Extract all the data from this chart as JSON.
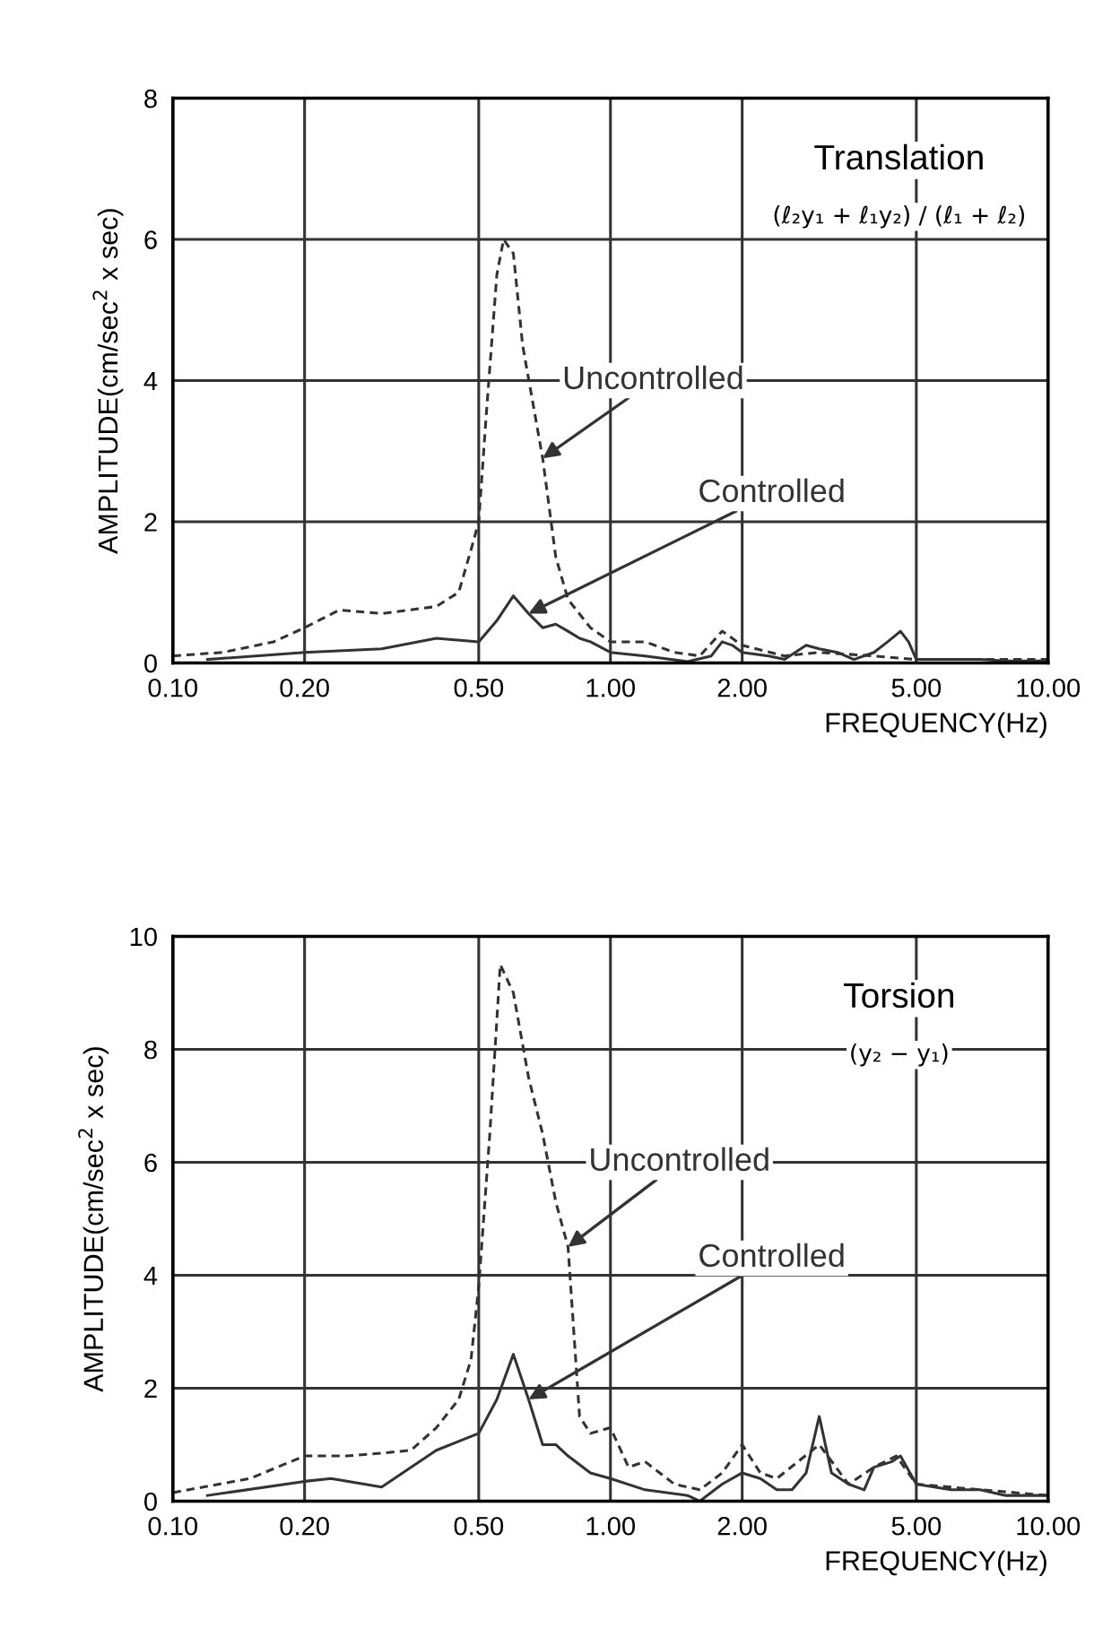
{
  "chart_data": [
    {
      "type": "line",
      "title": "Translation",
      "subtitle": "(ℓ₂y₁ + ℓ₁y₂) / (ℓ₁ + ℓ₂)",
      "xlabel": "FREQUENCY(Hz)",
      "ylabel": "AMPLITUDE(cm/sec$^{2}$ x sec)",
      "log": "x",
      "grid": true,
      "legend": false,
      "xlim": [
        0.1,
        10
      ],
      "xticks": [
        {
          "value": 0.1,
          "label": "0.10"
        },
        {
          "value": 0.2,
          "label": "0.20"
        },
        {
          "value": 0.5,
          "label": "0.50"
        },
        {
          "value": 1,
          "label": "1.00"
        },
        {
          "value": 2,
          "label": "2.00"
        },
        {
          "value": 5,
          "label": "5.00"
        },
        {
          "value": 10,
          "label": "10.00"
        }
      ],
      "ylim": [
        0,
        8
      ],
      "yticks": [
        0,
        2,
        4,
        6,
        8
      ],
      "series": [
        {
          "name": "Uncontrolled",
          "color": "#333333",
          "line_style": "dashed",
          "x": [
            0.1,
            0.13,
            0.17,
            0.2,
            0.24,
            0.3,
            0.4,
            0.45,
            0.48,
            0.5,
            0.52,
            0.55,
            0.57,
            0.6,
            0.63,
            0.7,
            0.75,
            0.8,
            0.9,
            1.0,
            1.2,
            1.4,
            1.6,
            1.8,
            2.0,
            2.5,
            3.0,
            4.0,
            5.0,
            10.0
          ],
          "values": [
            0.1,
            0.15,
            0.3,
            0.5,
            0.75,
            0.7,
            0.8,
            1.0,
            1.6,
            2.0,
            3.5,
            5.5,
            6.0,
            5.8,
            4.5,
            2.9,
            1.5,
            0.9,
            0.5,
            0.3,
            0.3,
            0.15,
            0.1,
            0.45,
            0.25,
            0.1,
            0.15,
            0.1,
            0.05,
            0.05
          ]
        },
        {
          "name": "Controlled",
          "color": "#333333",
          "line_style": "solid",
          "x": [
            0.12,
            0.2,
            0.3,
            0.4,
            0.5,
            0.55,
            0.6,
            0.65,
            0.7,
            0.75,
            0.8,
            0.85,
            0.9,
            1.0,
            1.2,
            1.5,
            1.7,
            1.8,
            1.9,
            2.0,
            2.3,
            2.5,
            2.8,
            3.0,
            3.3,
            3.6,
            4.0,
            4.3,
            4.6,
            4.8,
            5.0,
            6.0,
            7.0,
            8.0,
            10.0
          ],
          "values": [
            0.05,
            0.15,
            0.2,
            0.35,
            0.3,
            0.6,
            0.95,
            0.7,
            0.5,
            0.55,
            0.45,
            0.35,
            0.3,
            0.15,
            0.1,
            0.02,
            0.1,
            0.3,
            0.25,
            0.15,
            0.1,
            0.05,
            0.25,
            0.2,
            0.15,
            0.05,
            0.15,
            0.3,
            0.45,
            0.3,
            0.05,
            0.05,
            0.05,
            0.03,
            0.03
          ]
        }
      ]
    },
    {
      "type": "line",
      "title": "Torsion",
      "subtitle": "(y₂ − y₁)",
      "xlabel": "FREQUENCY(Hz)",
      "ylabel": "AMPLITUDE(cm/sec$^{2}$ x sec)",
      "log": "x",
      "grid": true,
      "legend": false,
      "xlim": [
        0.1,
        10
      ],
      "xticks": [
        {
          "value": 0.1,
          "label": "0.10"
        },
        {
          "value": 0.2,
          "label": "0.20"
        },
        {
          "value": 0.5,
          "label": "0.50"
        },
        {
          "value": 1,
          "label": "1.00"
        },
        {
          "value": 2,
          "label": "2.00"
        },
        {
          "value": 5,
          "label": "5.00"
        },
        {
          "value": 10,
          "label": "10.00"
        }
      ],
      "ylim": [
        0,
        10
      ],
      "yticks": [
        0,
        2,
        4,
        6,
        8,
        10
      ],
      "series": [
        {
          "name": "Uncontrolled",
          "color": "#333333",
          "line_style": "dashed",
          "x": [
            0.1,
            0.15,
            0.2,
            0.25,
            0.3,
            0.35,
            0.4,
            0.45,
            0.48,
            0.5,
            0.53,
            0.56,
            0.6,
            0.65,
            0.7,
            0.75,
            0.8,
            0.85,
            0.9,
            1.0,
            1.1,
            1.2,
            1.4,
            1.6,
            1.8,
            2.0,
            2.2,
            2.4,
            3.0,
            3.5,
            4.0,
            4.5,
            5.0,
            10.0
          ],
          "values": [
            0.15,
            0.4,
            0.8,
            0.8,
            0.85,
            0.9,
            1.3,
            1.8,
            2.5,
            3.8,
            6.5,
            9.5,
            9.0,
            7.5,
            6.5,
            5.3,
            4.5,
            1.5,
            1.2,
            1.3,
            0.6,
            0.7,
            0.3,
            0.2,
            0.5,
            1.0,
            0.5,
            0.4,
            1.0,
            0.3,
            0.6,
            0.8,
            0.3,
            0.1
          ]
        },
        {
          "name": "Controlled",
          "color": "#333333",
          "line_style": "solid",
          "x": [
            0.12,
            0.2,
            0.23,
            0.3,
            0.35,
            0.4,
            0.5,
            0.55,
            0.6,
            0.65,
            0.7,
            0.75,
            0.8,
            0.9,
            1.0,
            1.2,
            1.5,
            1.6,
            1.8,
            2.0,
            2.2,
            2.4,
            2.6,
            2.8,
            3.0,
            3.2,
            3.5,
            3.8,
            4.0,
            4.4,
            4.6,
            5.0,
            6.0,
            7.0,
            8.0,
            10.0
          ],
          "values": [
            0.1,
            0.35,
            0.4,
            0.25,
            0.6,
            0.9,
            1.2,
            1.8,
            2.6,
            1.8,
            1.0,
            1.0,
            0.8,
            0.5,
            0.4,
            0.2,
            0.1,
            0.0,
            0.3,
            0.5,
            0.4,
            0.2,
            0.2,
            0.5,
            1.5,
            0.5,
            0.3,
            0.2,
            0.6,
            0.7,
            0.8,
            0.3,
            0.2,
            0.2,
            0.1,
            0.1
          ]
        }
      ]
    }
  ]
}
